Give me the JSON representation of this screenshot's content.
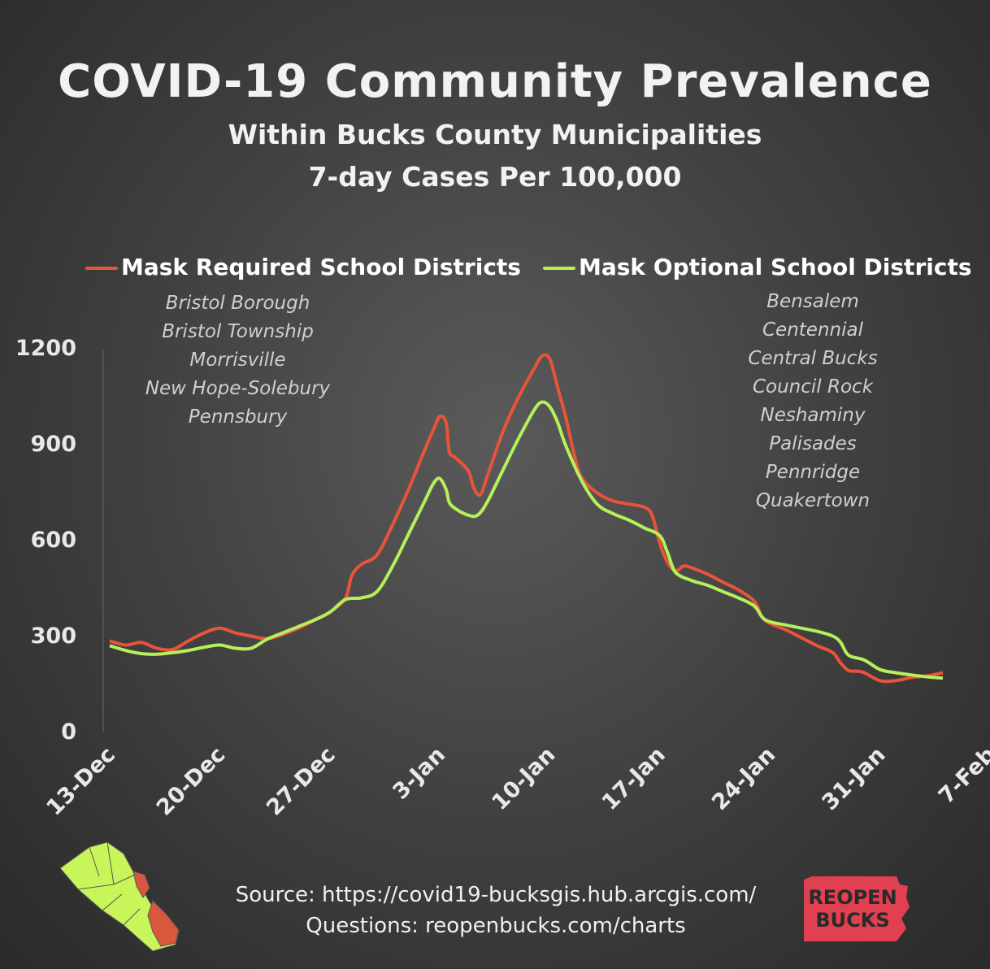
{
  "title": "COVID-19 Community Prevalence",
  "subtitle1": "Within Bucks County Municipalities",
  "subtitle2": "7-day Cases Per 100,000",
  "legend": {
    "required": "Mask Required School Districts",
    "optional": "Mask Optional School Districts"
  },
  "required_districts": [
    "Bristol Borough",
    "Bristol Township",
    "Morrisville",
    "New Hope-Solebury",
    "Pennsbury"
  ],
  "optional_districts": [
    "Bensalem",
    "Centennial",
    "Central Bucks",
    "Council Rock",
    "Neshaminy",
    "Palisades",
    "Pennridge",
    "Quakertown"
  ],
  "footer": {
    "source": "Source:  https://covid19-bucksgis.hub.arcgis.com/",
    "questions": "Questions: reopenbucks.com/charts"
  },
  "logo": {
    "line1": "REOPEN",
    "line2": "BUCKS"
  },
  "colors": {
    "required": "#e8543a",
    "optional": "#b5f05a",
    "logo": "#e04050",
    "map_green": "#c8f55a",
    "map_red": "#d9573c"
  },
  "chart_data": {
    "type": "line",
    "ylim": [
      0,
      1200
    ],
    "yticks": [
      0,
      300,
      600,
      900,
      1200
    ],
    "x_tick_labels": [
      "13-Dec",
      "20-Dec",
      "27-Dec",
      "3-Jan",
      "10-Jan",
      "17-Jan",
      "24-Jan",
      "31-Jan",
      "7-Feb"
    ],
    "x_tick_days": [
      0,
      7,
      14,
      21,
      28,
      35,
      42,
      49,
      56
    ],
    "series": [
      {
        "name": "Mask Required School Districts",
        "color": "#e8543a",
        "points": [
          [
            0,
            285
          ],
          [
            1,
            272
          ],
          [
            2,
            280
          ],
          [
            3,
            262
          ],
          [
            4,
            258
          ],
          [
            5,
            285
          ],
          [
            6,
            310
          ],
          [
            7,
            325
          ],
          [
            8,
            310
          ],
          [
            9,
            300
          ],
          [
            10,
            292
          ],
          [
            11,
            305
          ],
          [
            12,
            325
          ],
          [
            13,
            350
          ],
          [
            14,
            375
          ],
          [
            15,
            420
          ],
          [
            15.4,
            490
          ],
          [
            16,
            525
          ],
          [
            17,
            555
          ],
          [
            18,
            650
          ],
          [
            19,
            760
          ],
          [
            20,
            880
          ],
          [
            20.6,
            950
          ],
          [
            21,
            990
          ],
          [
            21.4,
            970
          ],
          [
            21.6,
            880
          ],
          [
            22,
            860
          ],
          [
            22.8,
            820
          ],
          [
            23.2,
            760
          ],
          [
            23.6,
            745
          ],
          [
            24,
            800
          ],
          [
            25,
            940
          ],
          [
            26,
            1050
          ],
          [
            27,
            1140
          ],
          [
            27.5,
            1180
          ],
          [
            28,
            1170
          ],
          [
            28.5,
            1080
          ],
          [
            29,
            990
          ],
          [
            29.5,
            880
          ],
          [
            30,
            800
          ],
          [
            31,
            750
          ],
          [
            32,
            725
          ],
          [
            33,
            715
          ],
          [
            34,
            705
          ],
          [
            34.5,
            680
          ],
          [
            35,
            590
          ],
          [
            35.5,
            530
          ],
          [
            36,
            505
          ],
          [
            36.5,
            520
          ],
          [
            37,
            515
          ],
          [
            38,
            495
          ],
          [
            39,
            470
          ],
          [
            40,
            445
          ],
          [
            41,
            410
          ],
          [
            41.5,
            360
          ],
          [
            42,
            340
          ],
          [
            43,
            320
          ],
          [
            44,
            295
          ],
          [
            45,
            270
          ],
          [
            46,
            248
          ],
          [
            46.5,
            215
          ],
          [
            47,
            192
          ],
          [
            47.5,
            190
          ],
          [
            48,
            185
          ],
          [
            49,
            160
          ],
          [
            50,
            160
          ],
          [
            51,
            170
          ],
          [
            52,
            175
          ],
          [
            53,
            185
          ]
        ]
      },
      {
        "name": "Mask Optional School Districts",
        "color": "#b5f05a",
        "points": [
          [
            0,
            270
          ],
          [
            1,
            255
          ],
          [
            2,
            245
          ],
          [
            3,
            243
          ],
          [
            4,
            248
          ],
          [
            5,
            255
          ],
          [
            6,
            265
          ],
          [
            7,
            272
          ],
          [
            8,
            262
          ],
          [
            9,
            262
          ],
          [
            10,
            290
          ],
          [
            11,
            310
          ],
          [
            12,
            330
          ],
          [
            13,
            350
          ],
          [
            14,
            375
          ],
          [
            15,
            415
          ],
          [
            16,
            420
          ],
          [
            17,
            440
          ],
          [
            18,
            520
          ],
          [
            19,
            620
          ],
          [
            20,
            720
          ],
          [
            20.6,
            780
          ],
          [
            21,
            795
          ],
          [
            21.4,
            760
          ],
          [
            21.6,
            720
          ],
          [
            22,
            700
          ],
          [
            22.8,
            680
          ],
          [
            23.4,
            680
          ],
          [
            24,
            720
          ],
          [
            25,
            820
          ],
          [
            26,
            920
          ],
          [
            27,
            1010
          ],
          [
            27.5,
            1035
          ],
          [
            28,
            1020
          ],
          [
            28.5,
            970
          ],
          [
            29,
            900
          ],
          [
            30,
            790
          ],
          [
            31,
            715
          ],
          [
            32,
            685
          ],
          [
            33,
            665
          ],
          [
            34,
            640
          ],
          [
            35,
            615
          ],
          [
            35.5,
            560
          ],
          [
            36,
            500
          ],
          [
            37,
            475
          ],
          [
            38,
            460
          ],
          [
            39,
            440
          ],
          [
            40,
            420
          ],
          [
            41,
            395
          ],
          [
            41.5,
            360
          ],
          [
            42,
            345
          ],
          [
            43,
            335
          ],
          [
            44,
            325
          ],
          [
            45,
            315
          ],
          [
            46,
            300
          ],
          [
            46.5,
            280
          ],
          [
            47,
            240
          ],
          [
            48,
            225
          ],
          [
            49,
            195
          ],
          [
            50,
            185
          ],
          [
            51,
            178
          ],
          [
            52,
            172
          ],
          [
            53,
            168
          ]
        ]
      }
    ]
  }
}
